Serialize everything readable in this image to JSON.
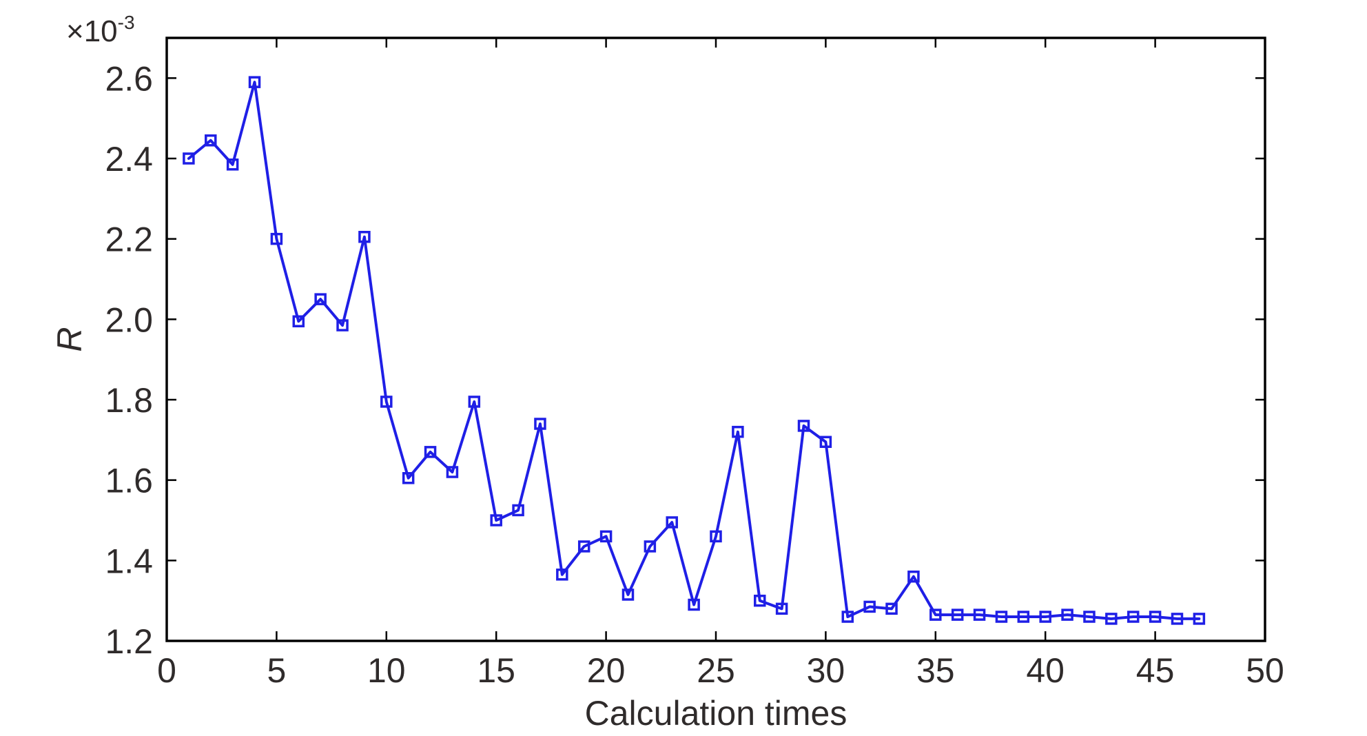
{
  "chart_data": {
    "type": "line",
    "title": "",
    "xlabel": "Calculation times",
    "ylabel": "R",
    "y_multiplier_label": {
      "base": "×10",
      "exponent": "-3"
    },
    "xlim": [
      0,
      50
    ],
    "ylim": [
      1.2,
      2.7
    ],
    "x_ticks": [
      0,
      5,
      10,
      15,
      20,
      25,
      30,
      35,
      40,
      45,
      50
    ],
    "x_tick_labels": [
      "0",
      "5",
      "10",
      "15",
      "20",
      "25",
      "30",
      "35",
      "40",
      "45",
      "50"
    ],
    "y_ticks": [
      1.2,
      1.4,
      1.6,
      1.8,
      2.0,
      2.2,
      2.4,
      2.6
    ],
    "y_tick_labels": [
      "1.2",
      "1.4",
      "1.6",
      "1.8",
      "2.0",
      "2.2",
      "2.4",
      "2.6"
    ],
    "grid": false,
    "legend": "none",
    "colors": {
      "series": "#1f1fe6",
      "axis": "#000000",
      "text": "#2f2b2b"
    },
    "series": [
      {
        "marker": "square",
        "x": [
          1,
          2,
          3,
          4,
          5,
          6,
          7,
          8,
          9,
          10,
          11,
          12,
          13,
          14,
          15,
          16,
          17,
          18,
          19,
          20,
          21,
          22,
          23,
          24,
          25,
          26,
          27,
          28,
          29,
          30,
          31,
          32,
          33,
          34,
          35,
          36,
          37,
          38,
          39,
          40,
          41,
          42,
          43,
          44,
          45,
          46,
          47
        ],
        "y": [
          2.4,
          2.445,
          2.385,
          2.59,
          2.2,
          1.995,
          2.05,
          1.985,
          2.205,
          1.795,
          1.605,
          1.67,
          1.62,
          1.795,
          1.5,
          1.525,
          1.74,
          1.365,
          1.435,
          1.46,
          1.315,
          1.435,
          1.495,
          1.29,
          1.46,
          1.72,
          1.3,
          1.28,
          1.735,
          1.695,
          1.26,
          1.285,
          1.28,
          1.36,
          1.265,
          1.265,
          1.265,
          1.26,
          1.26,
          1.26,
          1.265,
          1.26,
          1.255,
          1.26,
          1.26,
          1.255,
          1.255
        ]
      }
    ]
  }
}
